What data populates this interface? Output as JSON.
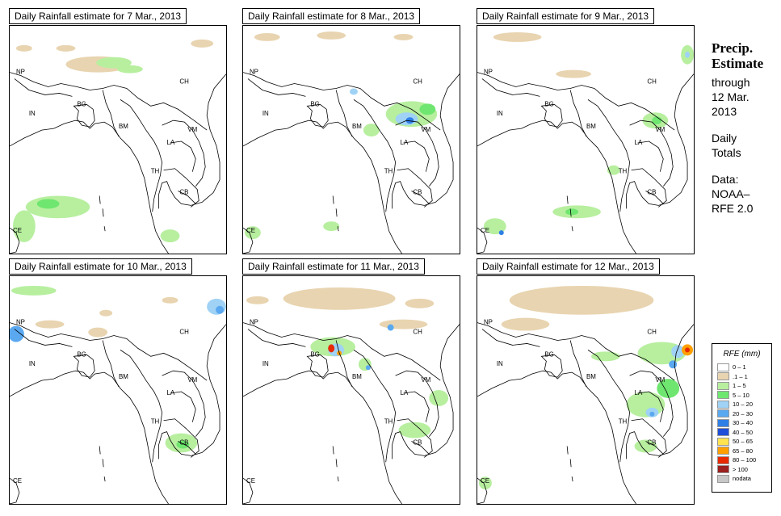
{
  "panels": [
    {
      "title": "Daily Rainfall estimate for  7 Mar., 2013"
    },
    {
      "title": "Daily Rainfall estimate for  8 Mar., 2013"
    },
    {
      "title": "Daily Rainfall estimate for  9 Mar., 2013"
    },
    {
      "title": "Daily Rainfall estimate for  10 Mar., 2013"
    },
    {
      "title": "Daily Rainfall estimate for  11 Mar., 2013"
    },
    {
      "title": "Daily Rainfall estimate for  12 Mar., 2013"
    }
  ],
  "map_labels": {
    "np": "NP",
    "ch": "CH",
    "in": "IN",
    "bg": "BG",
    "bm": "BM",
    "vm": "VM",
    "la": "LA",
    "th": "TH",
    "cb": "CB",
    "ce": "CE"
  },
  "sidebar": {
    "heading1": "Precip.",
    "heading2": "Estimate",
    "through": "through",
    "date1": "12 Mar.",
    "date2": "2013",
    "daily": "Daily",
    "totals": "Totals",
    "data_label": "Data:",
    "source1": "NOAA–",
    "source2": "RFE 2.0"
  },
  "legend": {
    "title": "RFE (mm)",
    "items": [
      {
        "label": "0 – 1",
        "color": "#ffffff"
      },
      {
        "label": ".1 – 1",
        "color": "#e8d4b0"
      },
      {
        "label": "1 – 5",
        "color": "#b7ef9f"
      },
      {
        "label": "5 – 10",
        "color": "#6fe66f"
      },
      {
        "label": "10 – 20",
        "color": "#9fd2f5"
      },
      {
        "label": "20 – 30",
        "color": "#5aa8f0"
      },
      {
        "label": "30 – 40",
        "color": "#2f7fe6"
      },
      {
        "label": "40 – 50",
        "color": "#1f4fd8"
      },
      {
        "label": "50 – 65",
        "color": "#ffe34f"
      },
      {
        "label": "65 – 80",
        "color": "#ff9f00"
      },
      {
        "label": "80 – 100",
        "color": "#e82a00"
      },
      {
        "label": "> 100",
        "color": "#9b2020"
      },
      {
        "label": "nodata",
        "color": "#c8c8c8"
      }
    ]
  }
}
